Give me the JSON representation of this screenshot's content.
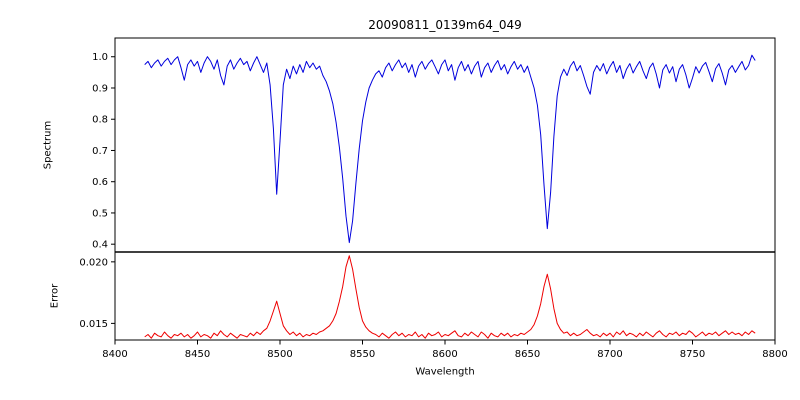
{
  "figure": {
    "title": "20090811_0139m64_049",
    "xlabel": "Wavelength",
    "background_color": "#ffffff",
    "axes_color": "#000000"
  },
  "xticks": [
    8400,
    8450,
    8500,
    8550,
    8600,
    8650,
    8700,
    8750,
    8800
  ],
  "xtick_labels": [
    "8400",
    "8450",
    "8500",
    "8550",
    "8600",
    "8650",
    "8700",
    "8750",
    "8800"
  ],
  "chart_data": [
    {
      "type": "line",
      "panel": "top",
      "name": "spectrum",
      "ylabel": "Spectrum",
      "color": "#0000dd",
      "xlabel": "Wavelength",
      "xlim": [
        8400,
        8800
      ],
      "ylim": [
        0.375,
        1.06
      ],
      "yticks": [
        0.4,
        0.5,
        0.6,
        0.7,
        0.8,
        0.9,
        1.0
      ],
      "ytick_labels": [
        "0.4",
        "0.5",
        "0.6",
        "0.7",
        "0.8",
        "0.9",
        "1.0"
      ],
      "notable_absorption_lines_x": [
        8498,
        8542,
        8662
      ],
      "notable_absorption_line_depths": [
        0.56,
        0.405,
        0.45
      ],
      "x_start": 8418,
      "x_step": 2,
      "y": [
        0.975,
        0.985,
        0.965,
        0.98,
        0.99,
        0.97,
        0.985,
        0.995,
        0.975,
        0.99,
        1.0,
        0.965,
        0.925,
        0.975,
        0.99,
        0.97,
        0.985,
        0.95,
        0.98,
        1.0,
        0.985,
        0.96,
        0.99,
        0.94,
        0.91,
        0.97,
        0.99,
        0.96,
        0.98,
        0.995,
        0.975,
        0.985,
        0.955,
        0.98,
        1.0,
        0.975,
        0.95,
        0.98,
        0.91,
        0.77,
        0.56,
        0.73,
        0.91,
        0.96,
        0.93,
        0.97,
        0.945,
        0.975,
        0.95,
        0.985,
        0.965,
        0.98,
        0.96,
        0.97,
        0.94,
        0.92,
        0.89,
        0.85,
        0.79,
        0.71,
        0.61,
        0.49,
        0.405,
        0.475,
        0.595,
        0.705,
        0.795,
        0.855,
        0.9,
        0.925,
        0.945,
        0.955,
        0.935,
        0.965,
        0.98,
        0.955,
        0.975,
        0.99,
        0.965,
        0.98,
        0.95,
        0.975,
        0.935,
        0.97,
        0.985,
        0.96,
        0.978,
        0.99,
        0.968,
        0.945,
        0.975,
        0.99,
        0.955,
        0.975,
        0.925,
        0.965,
        0.985,
        0.955,
        0.975,
        0.945,
        0.97,
        0.985,
        0.935,
        0.965,
        0.98,
        0.95,
        0.972,
        0.988,
        0.958,
        0.975,
        0.945,
        0.968,
        0.985,
        0.96,
        0.975,
        0.95,
        0.97,
        0.935,
        0.9,
        0.845,
        0.75,
        0.59,
        0.45,
        0.565,
        0.745,
        0.875,
        0.935,
        0.96,
        0.94,
        0.97,
        0.985,
        0.955,
        0.972,
        0.94,
        0.905,
        0.88,
        0.95,
        0.972,
        0.955,
        0.978,
        0.945,
        0.968,
        0.985,
        0.95,
        0.972,
        0.93,
        0.96,
        0.978,
        0.948,
        0.968,
        0.985,
        0.955,
        0.93,
        0.965,
        0.98,
        0.945,
        0.9,
        0.958,
        0.975,
        0.948,
        0.968,
        0.92,
        0.96,
        0.975,
        0.942,
        0.9,
        0.932,
        0.968,
        0.948,
        0.97,
        0.982,
        0.952,
        0.92,
        0.962,
        0.978,
        0.948,
        0.91,
        0.958,
        0.972,
        0.95,
        0.968,
        0.985,
        0.958,
        0.972,
        1.005,
        0.988
      ]
    },
    {
      "type": "line",
      "panel": "bottom",
      "name": "error",
      "ylabel": "Error",
      "color": "#ee0000",
      "xlabel": "Wavelength",
      "xlim": [
        8400,
        8800
      ],
      "ylim": [
        0.01365,
        0.0208
      ],
      "yticks": [
        0.015,
        0.02
      ],
      "ytick_labels": [
        "0.015",
        "0.020"
      ],
      "notable_peaks_x": [
        8498,
        8542,
        8662
      ],
      "notable_peak_heights": [
        0.0168,
        0.0205,
        0.019
      ],
      "x_start": 8418,
      "x_step": 2,
      "y": [
        0.0139,
        0.0141,
        0.0138,
        0.0142,
        0.014,
        0.0139,
        0.0143,
        0.014,
        0.0138,
        0.0141,
        0.014,
        0.0142,
        0.0139,
        0.0141,
        0.0138,
        0.014,
        0.0143,
        0.0139,
        0.0141,
        0.014,
        0.0138,
        0.0142,
        0.014,
        0.0144,
        0.0141,
        0.0139,
        0.0142,
        0.014,
        0.0138,
        0.0141,
        0.014,
        0.0139,
        0.0142,
        0.014,
        0.0143,
        0.0141,
        0.0144,
        0.0146,
        0.0152,
        0.016,
        0.0168,
        0.0158,
        0.0148,
        0.0144,
        0.0141,
        0.0143,
        0.014,
        0.0142,
        0.0139,
        0.0141,
        0.014,
        0.0142,
        0.0141,
        0.0143,
        0.0144,
        0.0146,
        0.0148,
        0.0152,
        0.0158,
        0.0168,
        0.018,
        0.0196,
        0.0205,
        0.0194,
        0.0178,
        0.0163,
        0.0152,
        0.0147,
        0.0144,
        0.0142,
        0.0141,
        0.0139,
        0.0142,
        0.014,
        0.0138,
        0.0141,
        0.0143,
        0.014,
        0.0142,
        0.0139,
        0.0141,
        0.014,
        0.0143,
        0.0139,
        0.0141,
        0.0138,
        0.0142,
        0.014,
        0.0141,
        0.0143,
        0.0139,
        0.0141,
        0.014,
        0.0142,
        0.0144,
        0.014,
        0.0139,
        0.0142,
        0.014,
        0.0143,
        0.0141,
        0.0139,
        0.0143,
        0.0141,
        0.0138,
        0.0142,
        0.014,
        0.0139,
        0.0142,
        0.014,
        0.0142,
        0.0139,
        0.0141,
        0.014,
        0.0142,
        0.0141,
        0.0143,
        0.0145,
        0.0149,
        0.0156,
        0.0166,
        0.018,
        0.019,
        0.0178,
        0.0162,
        0.015,
        0.0145,
        0.0142,
        0.0143,
        0.014,
        0.0142,
        0.014,
        0.0141,
        0.0143,
        0.0145,
        0.0142,
        0.014,
        0.0141,
        0.0139,
        0.0142,
        0.014,
        0.0142,
        0.0139,
        0.0143,
        0.0141,
        0.0144,
        0.014,
        0.0142,
        0.0141,
        0.0139,
        0.0142,
        0.014,
        0.0143,
        0.0141,
        0.0139,
        0.0142,
        0.0144,
        0.0141,
        0.0139,
        0.0142,
        0.0141,
        0.0143,
        0.014,
        0.0142,
        0.0141,
        0.0144,
        0.0142,
        0.0139,
        0.0141,
        0.0143,
        0.014,
        0.0142,
        0.0141,
        0.0143,
        0.014,
        0.0142,
        0.0144,
        0.0141,
        0.0143,
        0.0141,
        0.0142,
        0.014,
        0.0143,
        0.0141,
        0.0144,
        0.0142
      ]
    }
  ]
}
